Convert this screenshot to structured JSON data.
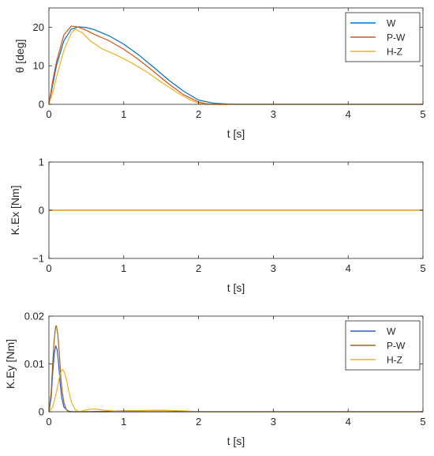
{
  "chart_data": [
    {
      "type": "line",
      "xlabel": "t [s]",
      "ylabel": "θ [deg]",
      "xlim": [
        0,
        5
      ],
      "ylim": [
        0,
        25
      ],
      "xticks": [
        "0",
        "1",
        "2",
        "3",
        "4",
        "5"
      ],
      "yticks": [
        "0",
        "10",
        "20"
      ],
      "legend_position": "top-right",
      "series": [
        {
          "name": "W",
          "color": "#0072BD",
          "x": [
            0,
            0.05,
            0.1,
            0.2,
            0.3,
            0.4,
            0.5,
            0.6,
            0.8,
            1.0,
            1.2,
            1.4,
            1.6,
            1.8,
            2.0,
            2.2,
            2.4,
            2.55,
            5
          ],
          "y": [
            0,
            5,
            10,
            16.5,
            19.5,
            20.1,
            19.9,
            19.4,
            17.8,
            15.6,
            12.8,
            9.6,
            6.3,
            3.4,
            1.1,
            0.3,
            0.05,
            0,
            0
          ]
        },
        {
          "name": "P-W",
          "color": "#D95319",
          "x": [
            0,
            0.05,
            0.1,
            0.2,
            0.3,
            0.4,
            0.5,
            0.6,
            0.8,
            1.0,
            1.2,
            1.4,
            1.6,
            1.8,
            2.0,
            2.1,
            2.2,
            5
          ],
          "y": [
            0,
            6,
            11,
            18,
            20.3,
            20.0,
            19.2,
            18.2,
            16.5,
            14.3,
            11.6,
            8.5,
            5.3,
            2.5,
            0.6,
            0.15,
            0,
            0
          ]
        },
        {
          "name": "H-Z",
          "color": "#EDB120",
          "x": [
            0,
            0.05,
            0.1,
            0.2,
            0.3,
            0.35,
            0.45,
            0.55,
            0.7,
            0.9,
            1.1,
            1.3,
            1.5,
            1.7,
            1.9,
            2.0,
            2.1,
            5
          ],
          "y": [
            0,
            3,
            7,
            14,
            18.5,
            19.5,
            18.5,
            16.5,
            14.5,
            12.8,
            10.8,
            8.5,
            5.8,
            3.2,
            1.0,
            0.3,
            0,
            0
          ]
        }
      ]
    },
    {
      "type": "line",
      "xlabel": "t [s]",
      "ylabel": "K.Ex [Nm]",
      "xlim": [
        0,
        5
      ],
      "ylim": [
        -1,
        1
      ],
      "xticks": [
        "0",
        "1",
        "2",
        "3",
        "4",
        "5"
      ],
      "yticks": [
        "−1",
        "0",
        "1"
      ],
      "series": [
        {
          "name": "",
          "color": "#0072BD",
          "x": [
            0,
            5
          ],
          "y": [
            0,
            0
          ]
        },
        {
          "name": "",
          "color": "#D95319",
          "x": [
            0,
            5
          ],
          "y": [
            0,
            0
          ]
        },
        {
          "name": "",
          "color": "#EDB120",
          "x": [
            0,
            5
          ],
          "y": [
            0,
            0
          ]
        }
      ]
    },
    {
      "type": "line",
      "xlabel": "t [s]",
      "ylabel": "K.Ey [Nm]",
      "xlim": [
        0,
        5
      ],
      "ylim": [
        0,
        0.02
      ],
      "xticks": [
        "0",
        "1",
        "2",
        "3",
        "4",
        "5"
      ],
      "yticks": [
        "0",
        "0.01",
        "0.02"
      ],
      "legend_position": "top-right",
      "series": [
        {
          "name": "W",
          "color": "#3355CC",
          "x": [
            0,
            0.03,
            0.05,
            0.07,
            0.09,
            0.11,
            0.13,
            0.15,
            0.17,
            0.2,
            0.25,
            0.3,
            0.4,
            0.6,
            1.0,
            1.5,
            2.0,
            5
          ],
          "y": [
            0,
            0.003,
            0.008,
            0.012,
            0.0138,
            0.013,
            0.01,
            0.006,
            0.003,
            0.001,
            0.0002,
            0,
            0,
            0,
            0,
            0,
            0,
            0
          ]
        },
        {
          "name": "P-W",
          "color": "#9C6A1C",
          "x": [
            0,
            0.03,
            0.05,
            0.07,
            0.09,
            0.1,
            0.12,
            0.14,
            0.16,
            0.18,
            0.2,
            0.23,
            0.27,
            0.35,
            0.5,
            1.0,
            1.5,
            2.0,
            5
          ],
          "y": [
            0,
            0.004,
            0.01,
            0.015,
            0.0178,
            0.018,
            0.016,
            0.012,
            0.007,
            0.004,
            0.002,
            0.0005,
            0,
            0,
            0,
            0.0002,
            0.0003,
            0,
            0
          ]
        },
        {
          "name": "H-Z",
          "color": "#EDB120",
          "x": [
            0,
            0.05,
            0.1,
            0.15,
            0.18,
            0.2,
            0.23,
            0.27,
            0.3,
            0.35,
            0.4,
            0.5,
            0.6,
            0.7,
            0.9,
            1.2,
            1.5,
            1.8,
            2.0,
            5
          ],
          "y": [
            0,
            0.001,
            0.004,
            0.008,
            0.0088,
            0.0085,
            0.007,
            0.004,
            0.002,
            0.0005,
            0,
            0.0004,
            0.0006,
            0.0004,
            0.0001,
            0.0002,
            0.0003,
            0.0002,
            0,
            0
          ]
        }
      ]
    }
  ]
}
